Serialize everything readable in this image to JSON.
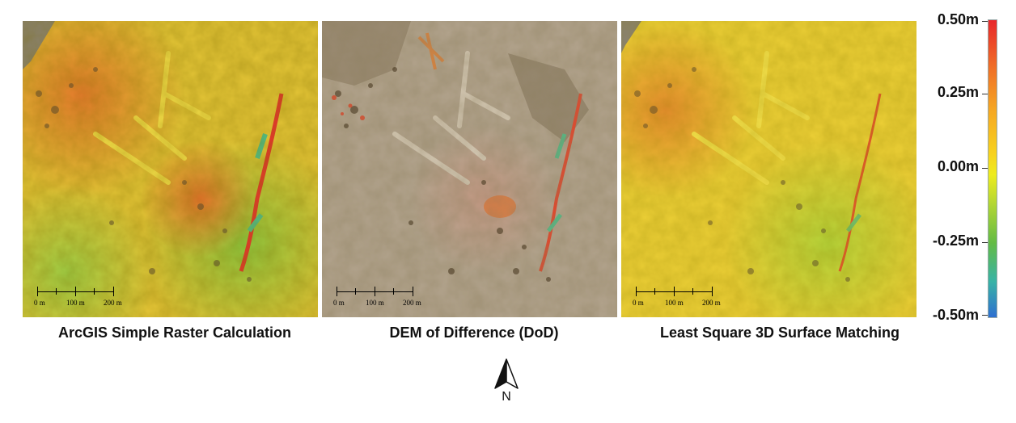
{
  "panels": [
    {
      "caption": "ArcGIS Simple Raster Calculation",
      "scale_labels": [
        "0 m",
        "100 m",
        "200 m"
      ]
    },
    {
      "caption": "DEM of Difference (DoD)",
      "scale_labels": [
        "0 m",
        "100 m",
        "200 m"
      ]
    },
    {
      "caption": "Least Square 3D Surface Matching",
      "scale_labels": [
        "0 m",
        "100 m",
        "200 m"
      ]
    }
  ],
  "legend": {
    "labels": [
      "0.50m",
      "0.25m",
      "0.00m",
      "-0.25m",
      "-0.50m"
    ],
    "colors": [
      "#e8262a",
      "#f5a623",
      "#eeec1e",
      "#63bb45",
      "#2e6fd0"
    ]
  },
  "north_arrow": {
    "label": "N",
    "icon": "north-arrow-icon"
  }
}
